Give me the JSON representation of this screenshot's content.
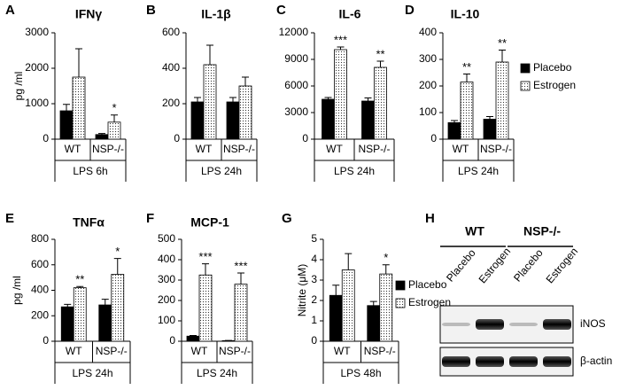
{
  "chart_data": [
    {
      "type": "bar",
      "label": "A",
      "title": "IFNγ",
      "ylabel": "pg /ml",
      "categories": [
        "WT",
        "NSP-/-"
      ],
      "group_label": "LPS 6h",
      "ylim": [
        0,
        3000
      ],
      "yticks": [
        0,
        1000,
        2000,
        3000
      ],
      "series": [
        {
          "color": "#000000",
          "values": [
            800,
            130
          ],
          "errors": [
            180,
            30
          ],
          "annotations": [
            null,
            null
          ]
        },
        {
          "color": "#ffffff",
          "pattern": "dots",
          "values": [
            1750,
            480
          ],
          "errors": [
            800,
            200
          ],
          "annotations": [
            null,
            "*"
          ]
        }
      ]
    },
    {
      "type": "bar",
      "label": "B",
      "title": "IL-1β",
      "categories": [
        "WT",
        "NSP-/-"
      ],
      "group_label": "LPS 24h",
      "ylim": [
        0,
        600
      ],
      "yticks": [
        0,
        200,
        400,
        600
      ],
      "series": [
        {
          "color": "#000000",
          "values": [
            210,
            210
          ],
          "errors": [
            25,
            25
          ],
          "annotations": [
            null,
            null
          ]
        },
        {
          "color": "#ffffff",
          "pattern": "dots",
          "values": [
            420,
            300
          ],
          "errors": [
            110,
            50
          ],
          "annotations": [
            null,
            null
          ]
        }
      ]
    },
    {
      "type": "bar",
      "label": "C",
      "title": "IL-6",
      "categories": [
        "WT",
        "NSP-/-"
      ],
      "group_label": "LPS 24h",
      "ylim": [
        0,
        12000
      ],
      "yticks": [
        0,
        3000,
        6000,
        9000,
        12000
      ],
      "series": [
        {
          "color": "#000000",
          "values": [
            4500,
            4300
          ],
          "errors": [
            200,
            350
          ],
          "annotations": [
            null,
            null
          ]
        },
        {
          "color": "#ffffff",
          "pattern": "dots",
          "values": [
            10100,
            8100
          ],
          "errors": [
            300,
            700
          ],
          "annotations": [
            "***",
            "**"
          ]
        }
      ]
    },
    {
      "type": "bar",
      "label": "D",
      "title": "IL-10",
      "categories": [
        "WT",
        "NSP-/-"
      ],
      "group_label": "LPS 24h",
      "ylim": [
        0,
        400
      ],
      "yticks": [
        0,
        100,
        200,
        300,
        400
      ],
      "legend": "right",
      "series": [
        {
          "name": "Placebo",
          "color": "#000000",
          "values": [
            62,
            75
          ],
          "errors": [
            8,
            10
          ],
          "annotations": [
            null,
            null
          ]
        },
        {
          "name": "Estrogen",
          "color": "#ffffff",
          "pattern": "dots",
          "values": [
            215,
            290
          ],
          "errors": [
            30,
            45
          ],
          "annotations": [
            "**",
            "**"
          ]
        }
      ]
    },
    {
      "type": "bar",
      "label": "E",
      "title": "TNFα",
      "ylabel": "pg /ml",
      "categories": [
        "WT",
        "NSP-/-"
      ],
      "group_label": "LPS 24h",
      "ylim": [
        0,
        800
      ],
      "yticks": [
        0,
        200,
        400,
        600,
        800
      ],
      "series": [
        {
          "color": "#000000",
          "values": [
            270,
            285
          ],
          "errors": [
            20,
            45
          ],
          "annotations": [
            null,
            null
          ]
        },
        {
          "color": "#ffffff",
          "pattern": "dots",
          "values": [
            420,
            525
          ],
          "errors": [
            10,
            125
          ],
          "annotations": [
            "**",
            "*"
          ]
        }
      ]
    },
    {
      "type": "bar",
      "label": "F",
      "title": "MCP-1",
      "categories": [
        "WT",
        "NSP-/-"
      ],
      "group_label": "LPS 24h",
      "ylim": [
        0,
        500
      ],
      "yticks": [
        0,
        100,
        200,
        300,
        400,
        500
      ],
      "series": [
        {
          "color": "#000000",
          "values": [
            25,
            3
          ],
          "errors": [
            3,
            1
          ],
          "annotations": [
            null,
            null
          ]
        },
        {
          "color": "#ffffff",
          "pattern": "dots",
          "values": [
            325,
            280
          ],
          "errors": [
            55,
            55
          ],
          "annotations": [
            "***",
            "***"
          ]
        }
      ]
    },
    {
      "type": "bar",
      "label": "G",
      "ylabel": "Nitrite (μM)",
      "categories": [
        "WT",
        "NSP-/-"
      ],
      "group_label": "LPS 48h",
      "ylim": [
        0,
        5
      ],
      "yticks": [
        0,
        1,
        2,
        3,
        4,
        5
      ],
      "legend": "right",
      "series": [
        {
          "name": "Placebo",
          "color": "#000000",
          "values": [
            2.25,
            1.75
          ],
          "errors": [
            0.5,
            0.2
          ],
          "annotations": [
            null,
            null
          ]
        },
        {
          "name": "Estrogen",
          "color": "#ffffff",
          "pattern": "dots",
          "values": [
            3.5,
            3.3
          ],
          "errors": [
            0.8,
            0.45
          ],
          "annotations": [
            null,
            "*"
          ]
        }
      ]
    }
  ],
  "blot": {
    "label": "H",
    "groups": [
      {
        "name": "WT",
        "lanes": [
          "Placebo",
          "Estrogen"
        ]
      },
      {
        "name": "NSP-/-",
        "lanes": [
          "Placebo",
          "Estrogen"
        ]
      }
    ],
    "rows": [
      "iNOS",
      "β-actin"
    ]
  }
}
